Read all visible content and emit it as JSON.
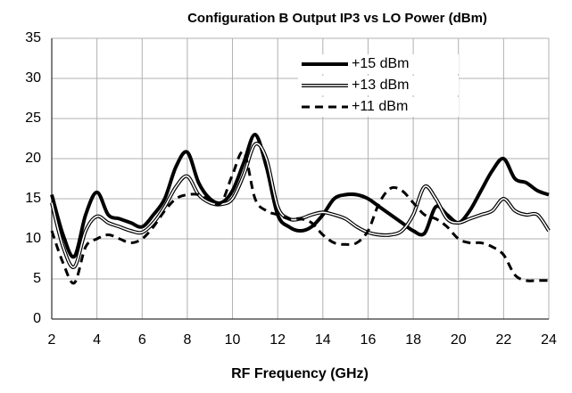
{
  "chart_data": {
    "type": "line",
    "title": "Configuration B Output IP3 vs LO Power (dBm)",
    "x_label": "RF Frequency (GHz)",
    "x": [
      2,
      2.5,
      3,
      3.5,
      4,
      4.5,
      5,
      5.5,
      6,
      6.5,
      7,
      7.5,
      8,
      8.5,
      9,
      9.5,
      10,
      10.5,
      11,
      11.5,
      12,
      12.5,
      13,
      13.5,
      14,
      14.5,
      15,
      15.5,
      16,
      16.5,
      17,
      17.5,
      18,
      18.5,
      19,
      19.5,
      20,
      20.5,
      21,
      21.5,
      22,
      22.5,
      23,
      23.5,
      24
    ],
    "series": [
      {
        "name": "+15 dBm",
        "color": "#000000",
        "style": "solid",
        "values": [
          15.5,
          10.5,
          7.8,
          13,
          15.8,
          13,
          12.5,
          12,
          11.5,
          13,
          15,
          19,
          20.8,
          17,
          15,
          14.5,
          16,
          19.5,
          23,
          19,
          13,
          11.5,
          11,
          11.5,
          13,
          15,
          15.5,
          15.5,
          15,
          14,
          13,
          12,
          11,
          10.7,
          14,
          13,
          12,
          13.5,
          16,
          18.5,
          20,
          17.5,
          17,
          16,
          15.5
        ]
      },
      {
        "name": "+13 dBm",
        "color": "#000000",
        "style": "double",
        "values": [
          14.5,
          9,
          6.5,
          11,
          12.8,
          12,
          11.5,
          11,
          10.8,
          12,
          14,
          16.5,
          17.8,
          15.5,
          14.5,
          14.3,
          15,
          18,
          21.8,
          20,
          14,
          12.5,
          12.5,
          13,
          13.3,
          13,
          12.5,
          11.5,
          10.8,
          10.5,
          10.5,
          11,
          13,
          16.5,
          15,
          12.5,
          12,
          12.5,
          13,
          13.5,
          15,
          13.5,
          13,
          13,
          11
        ]
      },
      {
        "name": "+11 dBm",
        "color": "#000000",
        "style": "dashed",
        "values": [
          11,
          7,
          4.5,
          9,
          10,
          10.5,
          10,
          9.5,
          10,
          11.5,
          13.5,
          15,
          15.5,
          15.5,
          14.8,
          14.5,
          18,
          20.8,
          15,
          13.5,
          13,
          12.5,
          12.5,
          12,
          10.5,
          9.5,
          9.3,
          9.5,
          11,
          14.5,
          16.3,
          16,
          14.5,
          13,
          12.5,
          11.5,
          10,
          9.5,
          9.5,
          9,
          8,
          5.5,
          4.8,
          4.8,
          4.8
        ]
      }
    ],
    "xlim": [
      2,
      24
    ],
    "xticks": [
      2,
      4,
      6,
      8,
      10,
      12,
      14,
      16,
      18,
      20,
      22,
      24
    ],
    "ylim": [
      0,
      35
    ],
    "yticks": [
      0,
      5,
      10,
      15,
      20,
      25,
      30,
      35
    ],
    "grid": true,
    "legend": "top"
  }
}
